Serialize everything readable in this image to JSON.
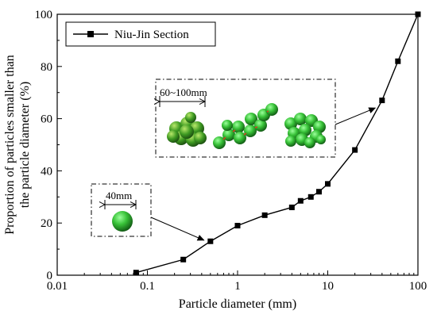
{
  "chart_data": {
    "type": "line",
    "xlabel": "Particle diameter (mm)",
    "ylabel_line1": "Proportion of particles smaller than",
    "ylabel_line2": "the particle diameter (%)",
    "xscale": "log",
    "xlim": [
      0.01,
      100
    ],
    "ylim": [
      0,
      100
    ],
    "x_ticks": [
      0.01,
      0.1,
      1,
      10,
      100
    ],
    "x_tick_labels": [
      "0.01",
      "0.1",
      "1",
      "10",
      "100"
    ],
    "y_ticks": [
      0,
      20,
      40,
      60,
      80,
      100
    ],
    "y_tick_labels": [
      "0",
      "20",
      "40",
      "60",
      "80",
      "100"
    ],
    "grid": false,
    "legend_position": "top-left",
    "series": [
      {
        "name": "Niu-Jin Section",
        "marker": "square",
        "color": "#000000",
        "x": [
          0.075,
          0.25,
          0.5,
          1,
          2,
          4,
          5,
          6.5,
          8,
          10,
          20,
          40,
          60,
          100
        ],
        "y": [
          1,
          6,
          13,
          19,
          23,
          26,
          28.5,
          30,
          32,
          35,
          48,
          67,
          82,
          100
        ]
      }
    ],
    "annotations": [
      {
        "label": "60~100mm",
        "type": "inset-particle-clusters",
        "points_to_x": 35,
        "points_to_y": 65
      },
      {
        "label": "40mm",
        "type": "inset-single-particle",
        "points_to_x": 0.45,
        "points_to_y": 12.5
      }
    ]
  },
  "colors": {
    "particle_light": "#7CF27C",
    "particle_mid": "#2FB52F",
    "particle_dark": "#0E5A12",
    "joint_red": "#d84020"
  }
}
